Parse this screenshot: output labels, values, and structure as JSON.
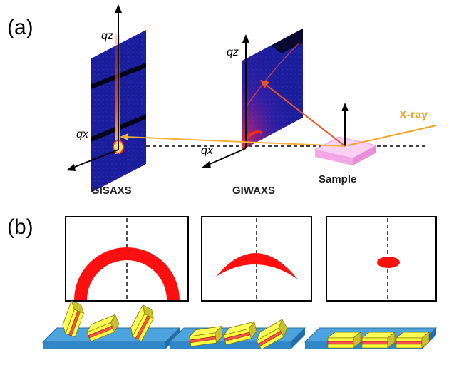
{
  "panel_a": {
    "label": "(a)",
    "axes": {
      "qz_gisaxs": "qz",
      "qx_gisaxs": "qx",
      "qz_giwaxs": "qz",
      "qx_giwaxs": "qx"
    },
    "detectors": [
      "GISAXS",
      "GIWAXS"
    ],
    "sample_label": "Sample",
    "beam_label": "X-ray"
  },
  "panel_b": {
    "label": "(b)",
    "patterns": [
      {
        "shape": "ring",
        "orientation": "random"
      },
      {
        "shape": "arc",
        "orientation": "partially oriented"
      },
      {
        "shape": "spot",
        "orientation": "highly oriented"
      }
    ]
  },
  "colors": {
    "detector_bg": "#1a1d9a",
    "scatter_red": "#ff1010",
    "beam": "#f5a020",
    "sample": "#f7b8ec",
    "substrate": "#2f8fd0",
    "crystal_yellow": "#ffff40",
    "crystal_red": "#ff5050"
  }
}
